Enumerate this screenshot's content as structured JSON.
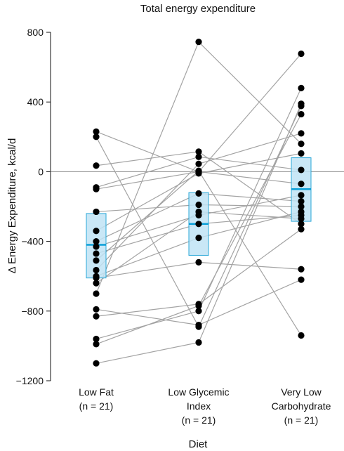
{
  "chart_data": {
    "type": "scatter",
    "title": "Total energy expenditure",
    "xlabel": "Diet",
    "ylabel": "Δ Energy Expenditure, kcal/d",
    "ylim": [
      -1200,
      800
    ],
    "yticks": [
      "800",
      "400",
      "0",
      "−400",
      "−800",
      "−1200"
    ],
    "ytick_values": [
      800,
      400,
      0,
      -400,
      -800,
      -1200
    ],
    "categories": [
      {
        "lines": [
          "Low Fat",
          "(n = 21)"
        ]
      },
      {
        "lines": [
          "Low Glycemic",
          "Index",
          "(n = 21)"
        ]
      },
      {
        "lines": [
          "Very Low",
          "Carbohydrate",
          "(n = 21)"
        ]
      }
    ],
    "boxes": [
      {
        "q1": -610,
        "median": -420,
        "q3": -240
      },
      {
        "q1": -480,
        "median": -300,
        "q3": -120
      },
      {
        "q1": -285,
        "median": -100,
        "q3": 80
      }
    ],
    "participants": [
      [
        230,
        -1,
        677
      ],
      [
        200,
        -890,
        377
      ],
      [
        35,
        115,
        -300
      ],
      [
        -90,
        85,
        10
      ],
      [
        -100,
        0,
        -70
      ],
      [
        -230,
        -190,
        -200
      ],
      [
        -340,
        -10,
        105
      ],
      [
        -400,
        -125,
        -170
      ],
      [
        -430,
        -250,
        -135
      ],
      [
        -470,
        -300,
        -250
      ],
      [
        -600,
        -380,
        -230
      ],
      [
        -610,
        -520,
        -560
      ],
      [
        -640,
        -230,
        -270
      ],
      [
        -700,
        745,
        160
      ],
      [
        -790,
        -880,
        -620
      ],
      [
        -960,
        -800,
        480
      ],
      [
        -990,
        -770,
        330
      ],
      [
        -1100,
        -980,
        390
      ],
      [
        -510,
        5,
        -940
      ],
      [
        -565,
        45,
        220
      ],
      [
        -830,
        -760,
        -330
      ]
    ],
    "colors": {
      "box_fill": "#bfe3f5",
      "box_stroke": "#2aa8d8",
      "median": "#0a9fd8",
      "line": "#a3a3a3",
      "point": "#000000",
      "zero_line": "#8c8c8c"
    }
  }
}
